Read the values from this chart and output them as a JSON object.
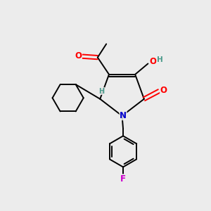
{
  "background_color": "#ececec",
  "atom_colors": {
    "O": "#FF0000",
    "N": "#0000CD",
    "F": "#CC00CC",
    "C": "#000000",
    "H": "#4a9a8a"
  },
  "bond_color": "#000000",
  "figsize": [
    3.0,
    3.0
  ],
  "dpi": 100,
  "lw": 1.4
}
